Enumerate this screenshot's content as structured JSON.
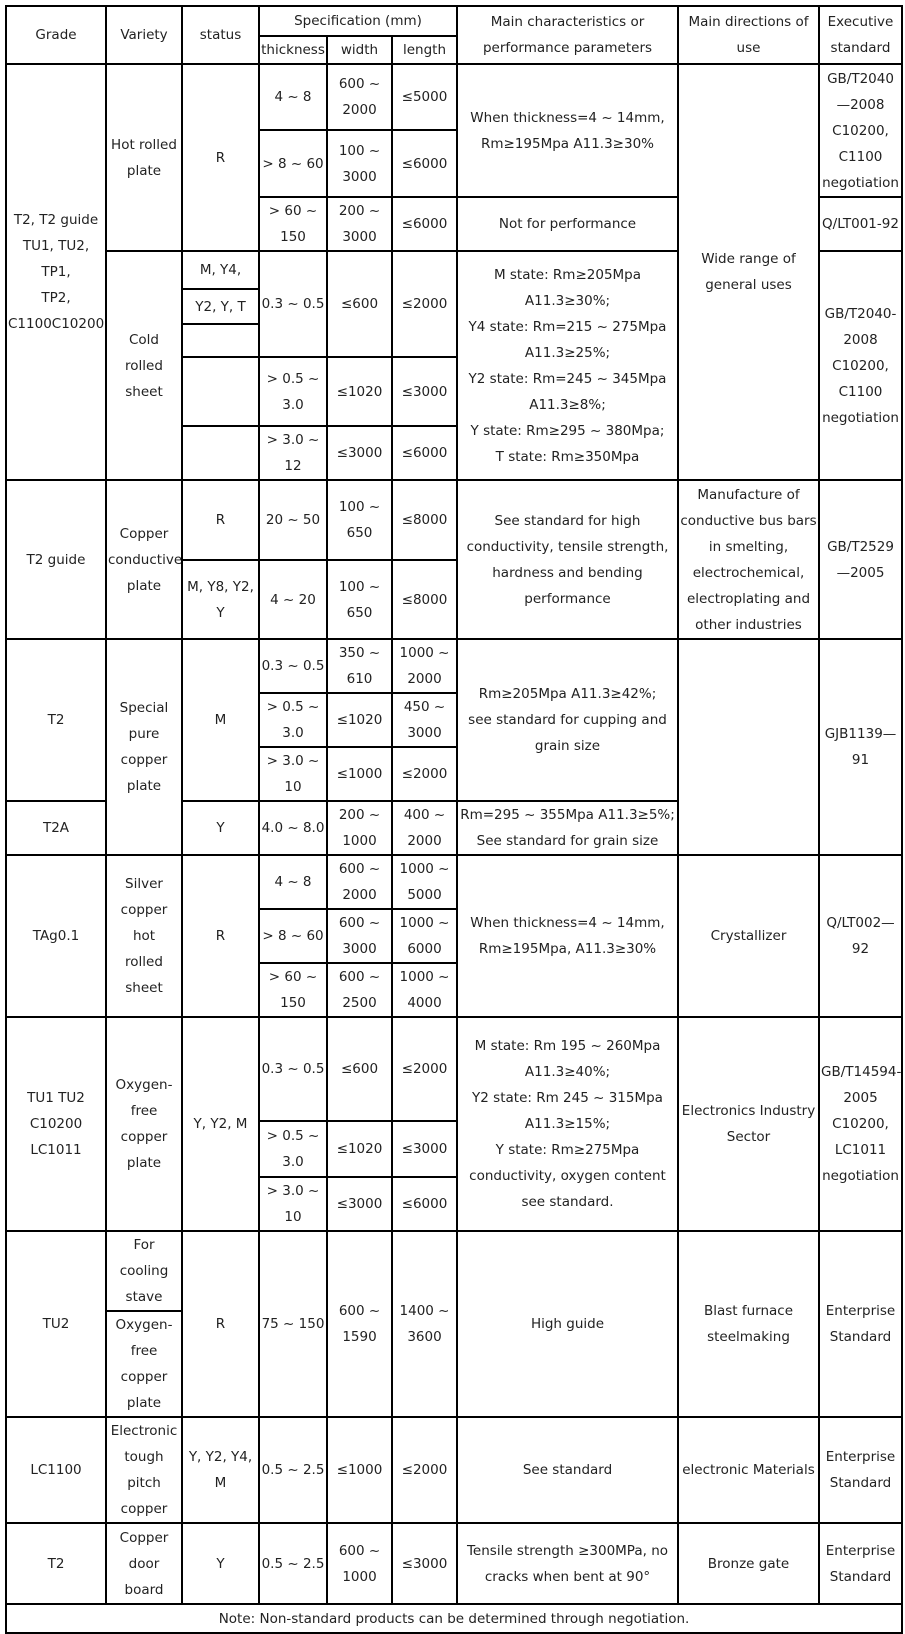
{
  "header": {
    "grade": "Grade",
    "variety": "Variety",
    "status": "status",
    "spec": "Specification (mm)",
    "thickness": "thickness",
    "width": "width",
    "length": "length",
    "characteristics": "Main characteristics or\nperformance parameters",
    "use": "Main directions of\nuse",
    "standard": "Executive\nstandard"
  },
  "s1": {
    "grade": "T2, T2 guide\nTU1, TU2, TP1,\nTP2,\nC1100C10200",
    "hot": "Hot rolled\nplate",
    "hot_status": "R",
    "cold": "Cold rolled\nsheet",
    "cold_status": [
      "M, Y4,",
      "Y2, Y, T"
    ],
    "rows": [
      {
        "t": "4 ~ 8",
        "w": "600 ~\n2000",
        "l": "≤5000"
      },
      {
        "t": "> 8 ~ 60",
        "w": "100 ~\n3000",
        "l": "≤6000"
      },
      {
        "t": "> 60 ~\n150",
        "w": "200 ~\n3000",
        "l": "≤6000"
      },
      {
        "t": "0.3 ~ 0.5",
        "w": "≤600",
        "l": "≤2000"
      },
      {
        "t": "> 0.5 ~\n3.0",
        "w": "≤1020",
        "l": "≤3000"
      },
      {
        "t": "> 3.0 ~ 12",
        "w": "≤3000",
        "l": "≤6000"
      }
    ],
    "char_hot": "When thickness=4 ~ 14mm,\nRm≥195Mpa A11.3≥30%",
    "char_thick": "Not for performance",
    "char_cold": "M state: Rm≥205Mpa\nA11.3≥30%;\nY4 state: Rm=215 ~ 275Mpa\nA11.3≥25%;\nY2 state: Rm=245 ~ 345Mpa\nA11.3≥8%;\nY state: Rm≥295 ~  380Mpa;\nT state: Rm≥350Mpa",
    "use": "Wide range of\ngeneral uses",
    "std_hot": "GB/T2040\n—2008\n   C10200,\nC1100\nnegotiation",
    "std_thick": "Q/LT001-92",
    "std_cold": "GB/T2040-\n2008\n   C10200,\nC1100\nnegotiation"
  },
  "s2": {
    "grade": "T2 guide",
    "variety": "Copper\nconductive\nplate",
    "rows": [
      {
        "s": "R",
        "t": "20 ~ 50",
        "w": "100 ~\n650",
        "l": "≤8000"
      },
      {
        "s": "M, Y8, Y2,\nY",
        "t": "4 ~ 20",
        "w": "100 ~\n650",
        "l": "≤8000"
      }
    ],
    "char": "See standard for high\nconductivity, tensile strength,\nhardness and bending\nperformance",
    "use": "Manufacture of\nconductive bus bars\nin smelting,\nelectrochemical,\nelectroplating and\nother industries",
    "std": "GB/T2529\n—2005"
  },
  "s3": {
    "grade": "T2",
    "grade2": "T2A",
    "variety": "Special\npure\ncopper\nplate",
    "status": "M",
    "status2": "Y",
    "rows": [
      {
        "t": "0.3 ~ 0.5",
        "w": "350 ~\n610",
        "l": "1000 ~\n2000"
      },
      {
        "t": "> 0.5 ~\n3.0",
        "w": "≤1020",
        "l": "450 ~\n3000"
      },
      {
        "t": "> 3.0 ~ 10",
        "w": "≤1000",
        "l": "≤2000"
      },
      {
        "t": "4.0 ~ 8.0",
        "w": "200 ~\n1000",
        "l": "400 ~\n2000"
      }
    ],
    "char": "Rm≥205Mpa A11.3≥42%;\nsee standard for cupping and\ngrain size",
    "char2": "Rm=295 ~ 355Mpa A11.3≥5%;\nSee standard for grain size",
    "use": "",
    "std": "GJB1139—\n91"
  },
  "s4": {
    "grade": "TAg0.1",
    "variety": "Silver\ncopper hot\nrolled\nsheet",
    "status": "R",
    "rows": [
      {
        "t": "4 ~ 8",
        "w": "600 ~\n2000",
        "l": "1000 ~\n5000"
      },
      {
        "t": "> 8 ~ 60",
        "w": "600 ~\n3000",
        "l": "1000 ~\n6000"
      },
      {
        "t": "> 60 ~\n150",
        "w": "600 ~\n2500",
        "l": "1000 ~\n4000"
      }
    ],
    "char": "When thickness=4 ~ 14mm,\nRm≥195Mpa, A11.3≥30%",
    "use": "Crystallizer",
    "std": "Q/LT002—\n92"
  },
  "s5": {
    "grade": "TU1 TU2\nC10200\nLC1011",
    "variety": "Oxygen-\nfree\ncopper\nplate",
    "status": "Y, Y2, M",
    "rows": [
      {
        "t": "0.3 ~ 0.5",
        "w": "≤600",
        "l": "≤2000"
      },
      {
        "t": "> 0.5 ~\n3.0",
        "w": "≤1020",
        "l": "≤3000"
      },
      {
        "t": "> 3.0 ~ 10",
        "w": "≤3000",
        "l": "≤6000"
      }
    ],
    "char": "M state: Rm 195 ~ 260Mpa\nA11.3≥40%;\nY2 state: Rm 245 ~ 315Mpa\nA11.3≥15%;\nY state: Rm≥275Mpa\nconductivity, oxygen content\nsee standard.",
    "use": "Electronics Industry\nSector",
    "std": "GB/T14594-\n2005\n   C10200,\nLC1011\nnegotiation"
  },
  "s6": {
    "grade": "TU2",
    "variety": "For\ncooling\nstave",
    "variety2": "Oxygen-\nfree\ncopper\nplate",
    "status": "R",
    "t": "75 ~ 150",
    "w": "600 ~\n1590",
    "l": "1400 ~\n3600",
    "char": "High guide",
    "use": "Blast furnace\nsteelmaking",
    "std": "Enterprise\nStandard"
  },
  "s7": {
    "grade": "LC1100",
    "variety": "Electronic\ntough\npitch\ncopper",
    "status": "Y, Y2, Y4,\nM",
    "t": "0.5 ~ 2.5",
    "w": "≤1000",
    "l": "≤2000",
    "char": "See standard",
    "use": "electronic Materials",
    "std": "Enterprise\nStandard"
  },
  "s8": {
    "grade": "T2",
    "variety": "Copper\ndoor\nboard",
    "status": "Y",
    "t": "0.5 ~ 2.5",
    "w": "600 ~\n1000",
    "l": "≤3000",
    "char": "Tensile strength ≥300MPa, no\ncracks when bent at 90°",
    "use": "Bronze gate",
    "std": "Enterprise\nStandard"
  },
  "note": "Note: Non-standard products can be determined through negotiation."
}
